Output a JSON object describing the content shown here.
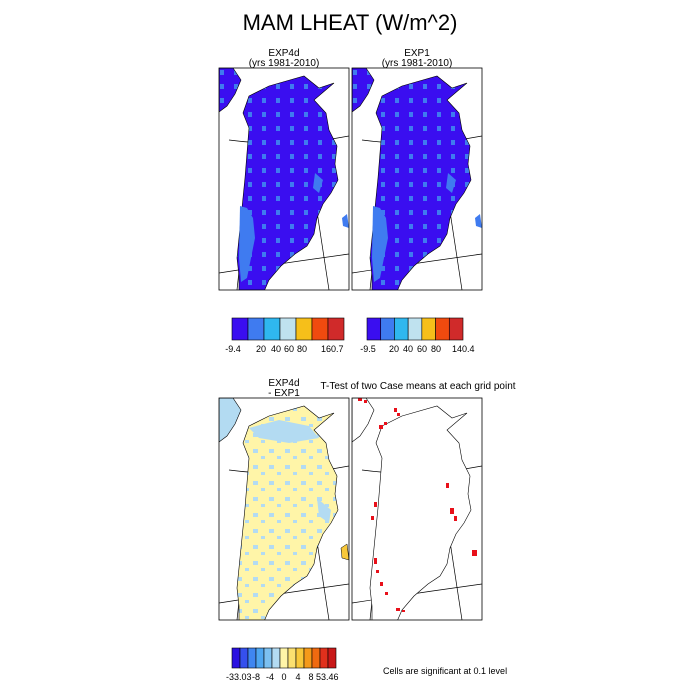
{
  "title": "MAM LHEAT (W/m^2)",
  "panels": {
    "exp4d": {
      "title_line1": "EXP4d",
      "title_line2": "(yrs 1981-2010)"
    },
    "exp1": {
      "title_line1": "EXP1",
      "title_line2": "(yrs 1981-2010)"
    },
    "diff": {
      "title_line1": "EXP4d",
      "title_line2": "- EXP1"
    },
    "ttest": {
      "title": "T-Test of two Case means at each grid point"
    }
  },
  "colorbars": {
    "exp4d": {
      "labels": [
        "-9.4",
        "20",
        "40",
        "60",
        "80",
        "160.7"
      ],
      "colors": [
        "#3a0ef0",
        "#3f7bf0",
        "#2fb7ef",
        "#bfe2ef",
        "#f6bf1a",
        "#f04a0f",
        "#d02a2a"
      ]
    },
    "exp1": {
      "labels": [
        "-9.5",
        "20",
        "40",
        "60",
        "80",
        "140.4"
      ],
      "colors": [
        "#3a0ef0",
        "#3f7bf0",
        "#2fb7ef",
        "#bfe2ef",
        "#f6bf1a",
        "#f04a0f",
        "#d02a2a"
      ]
    },
    "diff": {
      "labels": [
        "-33.03",
        "-8",
        "-4",
        "0",
        "4",
        "8",
        "53.46"
      ],
      "colors": [
        "#2a10e0",
        "#3550ee",
        "#3f86f0",
        "#4ea6f0",
        "#7cc0f0",
        "#b3dbf2",
        "#fff5a8",
        "#fbe070",
        "#f8c83a",
        "#f59a1a",
        "#f06a10",
        "#e0301c",
        "#c81818"
      ]
    }
  },
  "colors": {
    "land_fill_blue": "#3a0ef0",
    "land_edge_blue": "#3f7bf0",
    "diff_yellow": "#fff5a8",
    "diff_lightblue": "#b3dbf2",
    "significant_red": "#e8101a"
  },
  "significance_note": "Cells are significant at 0.1 level"
}
